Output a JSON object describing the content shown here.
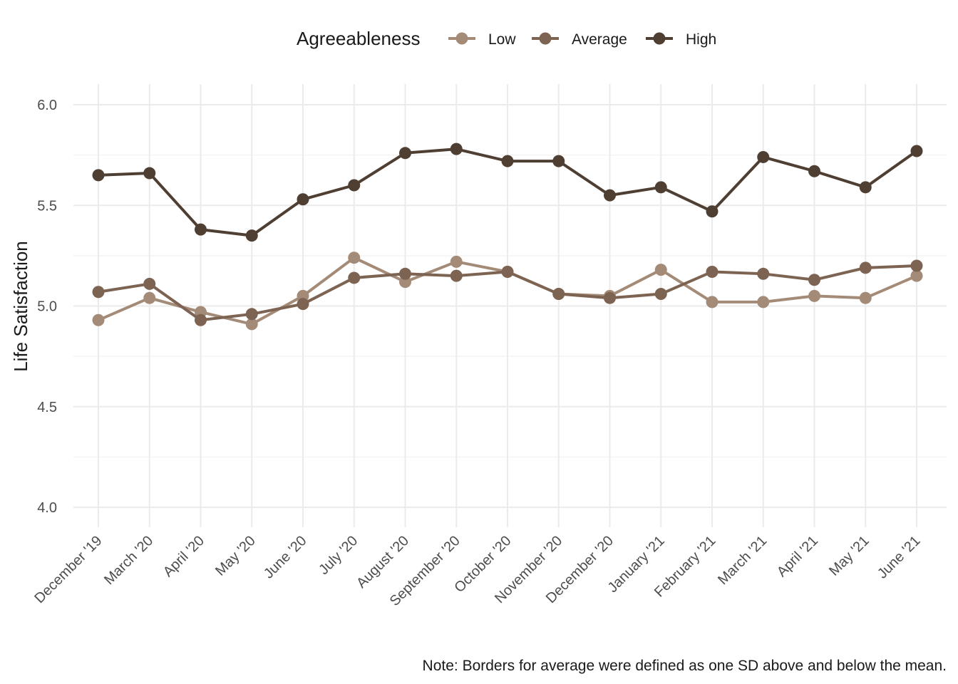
{
  "chart_data": {
    "type": "line",
    "title": "",
    "xlabel": "",
    "ylabel": "Life Satisfaction",
    "ylim": [
      3.9,
      6.1
    ],
    "yticks": [
      4.0,
      4.5,
      5.0,
      5.5,
      6.0
    ],
    "ytick_labels": [
      "4.0",
      "4.5",
      "5.0",
      "5.5",
      "6.0"
    ],
    "grid": true,
    "legend": {
      "title": "Agreeableness",
      "position": "top"
    },
    "categories": [
      "December '19",
      "March '20",
      "April '20",
      "May '20",
      "June '20",
      "July '20",
      "August '20",
      "September '20",
      "October '20",
      "November '20",
      "December '20",
      "January '21",
      "February '21",
      "March '21",
      "April '21",
      "May '21",
      "June '21"
    ],
    "series": [
      {
        "name": "Low",
        "color": "#a48b78",
        "values": [
          4.93,
          5.04,
          4.97,
          4.91,
          5.05,
          5.24,
          5.12,
          5.22,
          5.17,
          5.06,
          5.05,
          5.18,
          5.02,
          5.02,
          5.05,
          5.04,
          5.15
        ]
      },
      {
        "name": "Average",
        "color": "#7d6352",
        "values": [
          5.07,
          5.11,
          4.93,
          4.96,
          5.01,
          5.14,
          5.16,
          5.15,
          5.17,
          5.06,
          5.04,
          5.06,
          5.17,
          5.16,
          5.13,
          5.19,
          5.2
        ]
      },
      {
        "name": "High",
        "color": "#4f3f33",
        "values": [
          5.65,
          5.66,
          5.38,
          5.35,
          5.53,
          5.6,
          5.76,
          5.78,
          5.72,
          5.72,
          5.55,
          5.59,
          5.47,
          5.74,
          5.67,
          5.59,
          5.77
        ]
      }
    ],
    "caption": "Note: Borders for average were defined as one SD above and below the mean."
  }
}
